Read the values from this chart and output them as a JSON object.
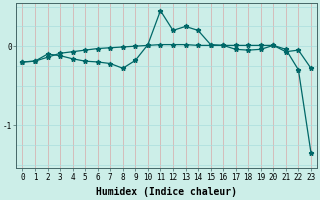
{
  "xlabel": "Humidex (Indice chaleur)",
  "bg_color": "#cceee8",
  "line_color": "#006868",
  "grid_color_v": "#d8a8a8",
  "grid_color_h": "#aadddd",
  "xlim": [
    -0.5,
    23.5
  ],
  "ylim": [
    -1.55,
    0.55
  ],
  "yticks": [
    0,
    -1
  ],
  "xticks": [
    0,
    1,
    2,
    3,
    4,
    5,
    6,
    7,
    8,
    9,
    10,
    11,
    12,
    13,
    14,
    15,
    16,
    17,
    18,
    19,
    20,
    21,
    22,
    23
  ],
  "line1_x": [
    0,
    1,
    2,
    3,
    4,
    5,
    6,
    7,
    8,
    9,
    10,
    11,
    12,
    13,
    14,
    15,
    16,
    17,
    18,
    19,
    20,
    21,
    22,
    23
  ],
  "line1_y": [
    -0.2,
    -0.19,
    -0.1,
    -0.12,
    -0.16,
    -0.19,
    -0.2,
    -0.22,
    -0.28,
    -0.18,
    0.02,
    0.45,
    0.2,
    0.25,
    0.2,
    0.02,
    0.01,
    -0.04,
    -0.05,
    -0.04,
    0.01,
    -0.07,
    -0.05,
    -0.28
  ],
  "line2_x": [
    0,
    1,
    2,
    3,
    4,
    5,
    6,
    7,
    8,
    9,
    10,
    11,
    12,
    13,
    14,
    15,
    16,
    17,
    18,
    19,
    20,
    21,
    22,
    23
  ],
  "line2_y": [
    -0.2,
    -0.19,
    -0.14,
    -0.09,
    -0.07,
    -0.05,
    -0.03,
    -0.02,
    -0.01,
    0.0,
    0.01,
    0.02,
    0.02,
    0.02,
    0.01,
    0.01,
    0.01,
    0.01,
    0.01,
    0.01,
    0.01,
    -0.04,
    -0.3,
    -1.35
  ],
  "marker": "*",
  "markersize": 3.5,
  "linewidth": 0.9,
  "tick_fontsize": 5.5,
  "label_fontsize": 7,
  "label_fontweight": "bold"
}
